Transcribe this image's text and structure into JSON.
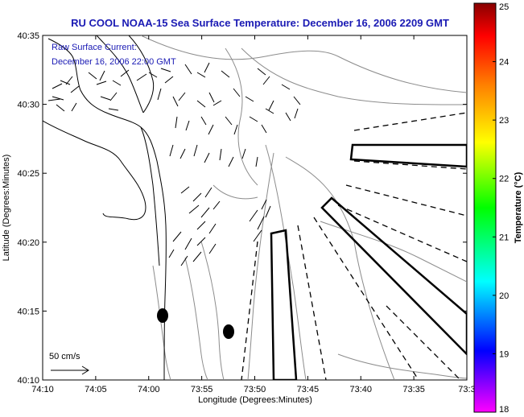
{
  "title": "RU COOL  NOAA-15  Sea Surface Temperature:  December 16, 2006 2209 GMT",
  "annotation_lines": [
    "Raw Surface Current:",
    "December 16, 2006 22:00 GMT"
  ],
  "scale_label": "50 cm/s",
  "x_axis": {
    "label": "Longitude (Degrees:Minutes)",
    "ticks": [
      "74:10",
      "74:05",
      "74:00",
      "73:55",
      "73:50",
      "73:45",
      "73:40",
      "73:35",
      "73:3"
    ]
  },
  "y_axis": {
    "label": "Latitude (Degrees:Minutes)",
    "ticks": [
      "40:35",
      "40:30",
      "40:25",
      "40:20",
      "40:15",
      "40:10"
    ]
  },
  "colorbar": {
    "label": "Temperature (°C)",
    "ticks": [
      "25",
      "24",
      "23",
      "22",
      "21",
      "20",
      "19",
      "18"
    ],
    "stops": [
      "#ff00ff",
      "#0000ff",
      "#00ffff",
      "#00ff00",
      "#ffff00",
      "#ff8000",
      "#ff0000",
      "#880000"
    ]
  },
  "colors": {
    "title": "#1a1ab4",
    "coastline": "#000000",
    "bathymetry": "#8c8c8c",
    "vectors": "#000000"
  }
}
